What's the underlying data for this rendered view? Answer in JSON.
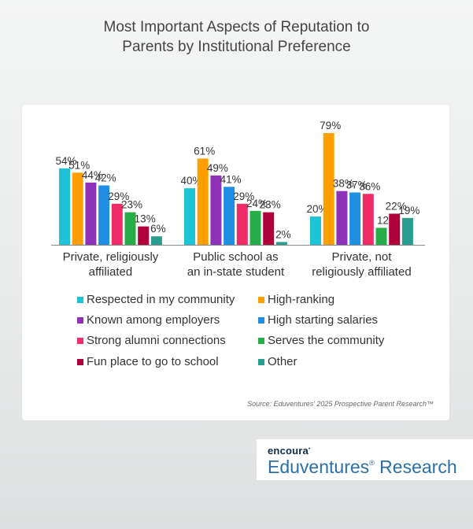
{
  "title_line1": "Most Important Aspects of Reputation to",
  "title_line2": "Parents by Institutional Preference",
  "source": "Source: Eduventures' 2025 Prospective Parent Research™",
  "brand": {
    "small": "encoura",
    "big": "Eduventures",
    "big_mark": "®",
    "big_suffix": " Research"
  },
  "chart_data": {
    "type": "bar",
    "title": "Most Important Aspects of Reputation to Parents by Institutional Preference",
    "categories": [
      [
        "Private, religiously",
        "affiliated"
      ],
      [
        "Public school as",
        "an in-state student"
      ],
      [
        "Private, not",
        "religiously affiliated"
      ]
    ],
    "series": [
      {
        "name": "Respected in my community",
        "color": "#1ec3d6",
        "values": [
          54,
          40,
          20
        ],
        "labels": [
          "54%",
          "40%",
          "20%"
        ]
      },
      {
        "name": "High-ranking",
        "color": "#ff9e00",
        "values": [
          51,
          61,
          79
        ],
        "labels": [
          "51%",
          "61%",
          "79%"
        ]
      },
      {
        "name": "Known among employers",
        "color": "#8e33b8",
        "values": [
          44,
          49,
          38
        ],
        "labels": [
          "44%",
          "49%",
          "38%"
        ]
      },
      {
        "name": "High starting salaries",
        "color": "#1f8ee3",
        "values": [
          42,
          41,
          37
        ],
        "labels": [
          "42%",
          "41%",
          "37%"
        ]
      },
      {
        "name": "Strong alumni connections",
        "color": "#ef2c68",
        "values": [
          29,
          29,
          36
        ],
        "labels": [
          "29%",
          "29%",
          "36%"
        ]
      },
      {
        "name": "Serves the community",
        "color": "#27ac4a",
        "values": [
          23,
          24,
          12
        ],
        "labels": [
          "23%",
          "24%",
          "12"
        ]
      },
      {
        "name": "Fun place to go to school",
        "color": "#b0003c",
        "values": [
          13,
          23,
          22
        ],
        "labels": [
          "13%",
          "23%",
          "22%"
        ]
      },
      {
        "name": "Other",
        "color": "#2a9d8f",
        "values": [
          6,
          2,
          19
        ],
        "labels": [
          "6%",
          "2%",
          "19%"
        ]
      }
    ],
    "ylim": [
      0,
      100
    ],
    "grid": false,
    "legend": "bottom, two columns"
  }
}
